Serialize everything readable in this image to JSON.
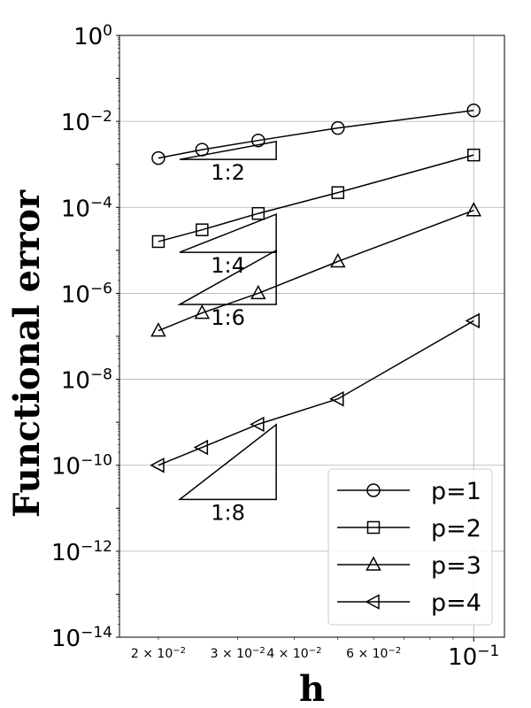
{
  "chart_data": {
    "type": "line",
    "xlabel": "h",
    "ylabel": "Functional error",
    "x_scale": "log",
    "y_scale": "log",
    "xlim": [
      0.0164,
      0.117
    ],
    "ylim": [
      1e-14,
      1
    ],
    "grid": true,
    "legend_position": "lower-right",
    "x_major_tick_labels": [
      {
        "value": 0.1,
        "base": "10",
        "exp": "−1"
      }
    ],
    "x_minor_tick_labels": [
      {
        "value": 0.02,
        "mantissa": "2",
        "exp": "−2"
      },
      {
        "value": 0.03,
        "mantissa": "3",
        "exp": "−2"
      },
      {
        "value": 0.04,
        "mantissa": "4",
        "exp": "−2"
      },
      {
        "value": 0.06,
        "mantissa": "6",
        "exp": "−2"
      }
    ],
    "y_tick_labels": [
      {
        "value": 1,
        "base": "10",
        "exp": "0"
      },
      {
        "value": 0.01,
        "base": "10",
        "exp": "−2"
      },
      {
        "value": 0.0001,
        "base": "10",
        "exp": "−4"
      },
      {
        "value": 1e-06,
        "base": "10",
        "exp": "−6"
      },
      {
        "value": 1e-08,
        "base": "10",
        "exp": "−8"
      },
      {
        "value": 1e-10,
        "base": "10",
        "exp": "−10"
      },
      {
        "value": 1e-12,
        "base": "10",
        "exp": "−12"
      },
      {
        "value": 1e-14,
        "base": "10",
        "exp": "−14"
      }
    ],
    "x": [
      0.02,
      0.025,
      0.0333,
      0.05,
      0.1
    ],
    "series": [
      {
        "name": "p=1",
        "marker": "circle",
        "values": [
          0.0014,
          0.0022,
          0.0036,
          0.007,
          0.018
        ]
      },
      {
        "name": "p=2",
        "marker": "square",
        "values": [
          1.6e-05,
          3e-05,
          7.2e-05,
          0.00022,
          0.00165
        ]
      },
      {
        "name": "p=3",
        "marker": "triangle-up",
        "values": [
          1.35e-07,
          3.5e-07,
          1e-06,
          5.5e-06,
          8.5e-05
        ]
      },
      {
        "name": "p=4",
        "marker": "triangle-left",
        "values": [
          1e-10,
          2.6e-10,
          9e-10,
          3.5e-09,
          2.3e-07
        ]
      }
    ],
    "slope_triangles": [
      {
        "label": "1:2",
        "x0": 0.0223,
        "x1": 0.0365,
        "y_base": 0.0013,
        "y_top": 0.0034
      },
      {
        "label": "1:4",
        "x0": 0.0223,
        "x1": 0.0365,
        "y_base": 9e-06,
        "y_top": 6.9e-05
      },
      {
        "label": "1:6",
        "x0": 0.0223,
        "x1": 0.0365,
        "y_base": 5.5e-07,
        "y_top": 1e-05
      },
      {
        "label": "1:8",
        "x0": 0.0223,
        "x1": 0.0365,
        "y_base": 1.6e-11,
        "y_top": 8.8e-10
      }
    ]
  }
}
